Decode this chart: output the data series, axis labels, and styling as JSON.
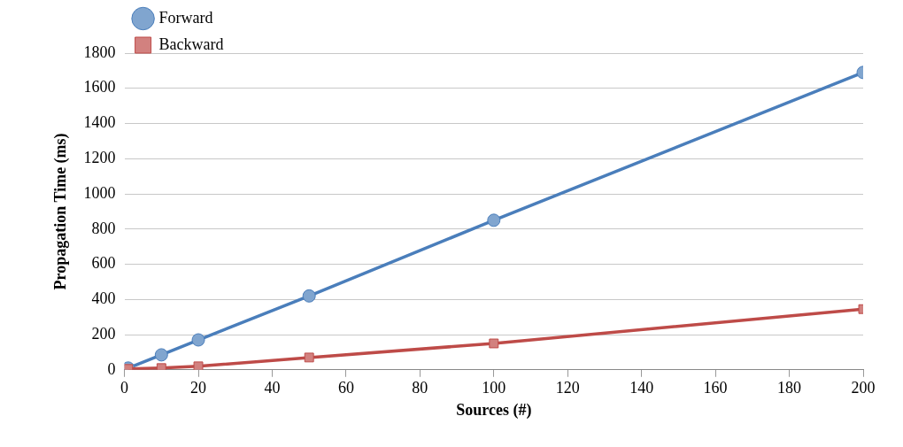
{
  "chart_data": {
    "type": "line",
    "xlabel": "Sources (#)",
    "ylabel": "Propagation Time (ms)",
    "x": [
      1,
      10,
      20,
      50,
      100,
      200
    ],
    "series": [
      {
        "name": "Forward",
        "color": "#4a7ebb",
        "marker": "circle",
        "values": [
          10,
          85,
          170,
          420,
          850,
          1690
        ]
      },
      {
        "name": "Backward",
        "color": "#be4b48",
        "marker": "square",
        "values": [
          5,
          10,
          20,
          70,
          150,
          345
        ]
      }
    ],
    "xlim": [
      0,
      200
    ],
    "xticks": [
      0,
      20,
      40,
      60,
      80,
      100,
      120,
      140,
      160,
      180,
      200
    ],
    "ylim": [
      0,
      1800
    ],
    "yticks": [
      0,
      200,
      400,
      600,
      800,
      1000,
      1200,
      1400,
      1600,
      1800
    ],
    "grid": "y",
    "legend": "top left",
    "line_style": "solid"
  }
}
